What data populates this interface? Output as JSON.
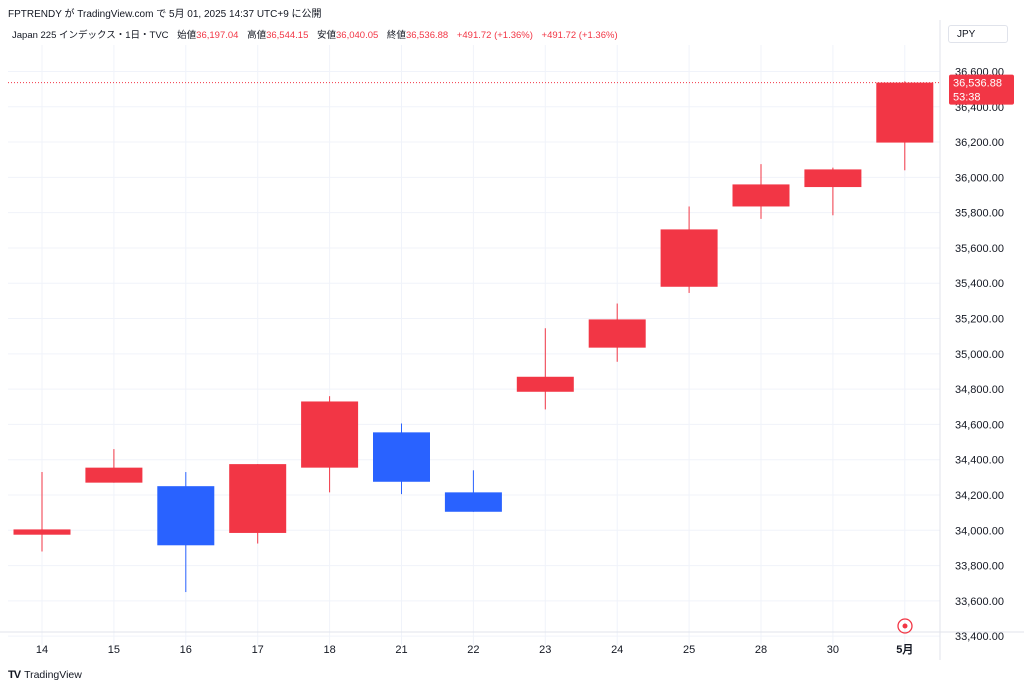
{
  "header": {
    "caption": "FPTRENDY が TradingView.com で 5月 01, 2025 14:37 UTC+9 に公開"
  },
  "legend": {
    "symbol": "Japan 225 インデックス・1日・TVC",
    "open_label": "始値",
    "open": "36,197.04",
    "high_label": "高値",
    "high": "36,544.15",
    "low_label": "安値",
    "low": "36,040.05",
    "close_label": "終値",
    "close": "36,536.88",
    "change": "+491.72 (+1.36%)",
    "change2": "+491.72 (+1.36%)"
  },
  "currency": "JPY",
  "price_tag": {
    "price": "36,536.88",
    "countdown": "53:38"
  },
  "footer": {
    "brand": "TradingView"
  },
  "colors": {
    "up": "#f23645",
    "down": "#2962ff",
    "grid": "#f0f3fa"
  },
  "chart_data": {
    "type": "candlestick",
    "ylim": [
      33350,
      36750
    ],
    "y_ticks": [
      33400,
      33600,
      33800,
      34000,
      34200,
      34400,
      34600,
      34800,
      35000,
      35200,
      35400,
      35600,
      35800,
      36000,
      36200,
      36400,
      36600
    ],
    "y_tick_labels": [
      "33,400.00",
      "33,600.00",
      "33,800.00",
      "34,000.00",
      "34,200.00",
      "34,400.00",
      "34,600.00",
      "34,800.00",
      "35,000.00",
      "35,200.00",
      "35,400.00",
      "35,600.00",
      "35,800.00",
      "36,000.00",
      "36,200.00",
      "36,400.00",
      "36,600.00"
    ],
    "categories": [
      "14",
      "15",
      "16",
      "17",
      "18",
      "21",
      "22",
      "23",
      "24",
      "25",
      "28",
      "30",
      "5月"
    ],
    "candles": [
      {
        "x": "14",
        "open": 33975,
        "high": 34330,
        "low": 33880,
        "close": 34005
      },
      {
        "x": "15",
        "open": 34270,
        "high": 34460,
        "low": 34270,
        "close": 34355
      },
      {
        "x": "16",
        "open": 34250,
        "high": 34330,
        "low": 33650,
        "close": 33915
      },
      {
        "x": "17",
        "open": 33985,
        "high": 34375,
        "low": 33925,
        "close": 34375
      },
      {
        "x": "18",
        "open": 34355,
        "high": 34760,
        "low": 34215,
        "close": 34730
      },
      {
        "x": "21",
        "open": 34555,
        "high": 34605,
        "low": 34205,
        "close": 34275
      },
      {
        "x": "22",
        "open": 34215,
        "high": 34340,
        "low": 34105,
        "close": 34105
      },
      {
        "x": "23",
        "open": 34785,
        "high": 35145,
        "low": 34685,
        "close": 34870
      },
      {
        "x": "24",
        "open": 35035,
        "high": 35285,
        "low": 34955,
        "close": 35195
      },
      {
        "x": "25",
        "open": 35380,
        "high": 35835,
        "low": 35345,
        "close": 35705
      },
      {
        "x": "28",
        "open": 35835,
        "high": 36075,
        "low": 35765,
        "close": 35960
      },
      {
        "x": "30",
        "open": 35945,
        "high": 36055,
        "low": 35785,
        "close": 36045
      },
      {
        "x": "5月",
        "open": 36197.04,
        "high": 36544.15,
        "low": 36040.05,
        "close": 36536.88
      }
    ],
    "last_price": 36536.88
  }
}
